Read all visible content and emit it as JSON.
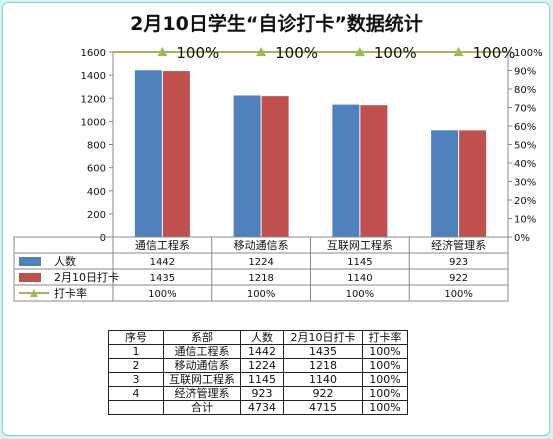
{
  "title": "2月10日学生“自诊打卡”数据统计",
  "chart_data": {
    "type": "bar",
    "categories": [
      "通信工程系",
      "移动通信系",
      "互联网工程系",
      "经济管理系"
    ],
    "series": [
      {
        "name": "人数",
        "values": [
          1442,
          1224,
          1145,
          923
        ],
        "color": "#4f81bd",
        "axis": "left",
        "labels": [
          "1442",
          "1224",
          "1145",
          "923"
        ]
      },
      {
        "name": "2月10日打卡",
        "values": [
          1435,
          1218,
          1140,
          922
        ],
        "color": "#c0504d",
        "axis": "left",
        "labels": [
          "1435",
          "1218",
          "1140",
          "922"
        ]
      },
      {
        "name": "打卡率",
        "values": [
          100,
          100,
          100,
          100
        ],
        "color": "#9bbb59",
        "type": "line",
        "axis": "right",
        "labels": [
          "100%",
          "100%",
          "100%",
          "100%"
        ],
        "point_labels": [
          "100%",
          "100%",
          "100%",
          "100%"
        ]
      }
    ],
    "ylim": [
      0,
      1600
    ],
    "yticks": [
      "0",
      "200",
      "400",
      "600",
      "800",
      "1000",
      "1200",
      "1400",
      "1600"
    ],
    "y2lim": [
      0,
      100
    ],
    "y2ticks": [
      "0%",
      "10%",
      "20%",
      "30%",
      "40%",
      "50%",
      "60%",
      "70%",
      "80%",
      "90%",
      "100%"
    ],
    "grid": false,
    "legend": "data-table-below"
  },
  "summary_table": {
    "headers": [
      "序号",
      "系部",
      "人数",
      "2月10日打卡",
      "打卡率"
    ],
    "rows": [
      [
        "1",
        "通信工程系",
        "1442",
        "1435",
        "100%"
      ],
      [
        "2",
        "移动通信系",
        "1224",
        "1218",
        "100%"
      ],
      [
        "3",
        "互联网工程系",
        "1145",
        "1140",
        "100%"
      ],
      [
        "4",
        "经济管理系",
        "923",
        "922",
        "100%"
      ],
      [
        "",
        "合计",
        "4734",
        "4715",
        "100%"
      ]
    ]
  }
}
